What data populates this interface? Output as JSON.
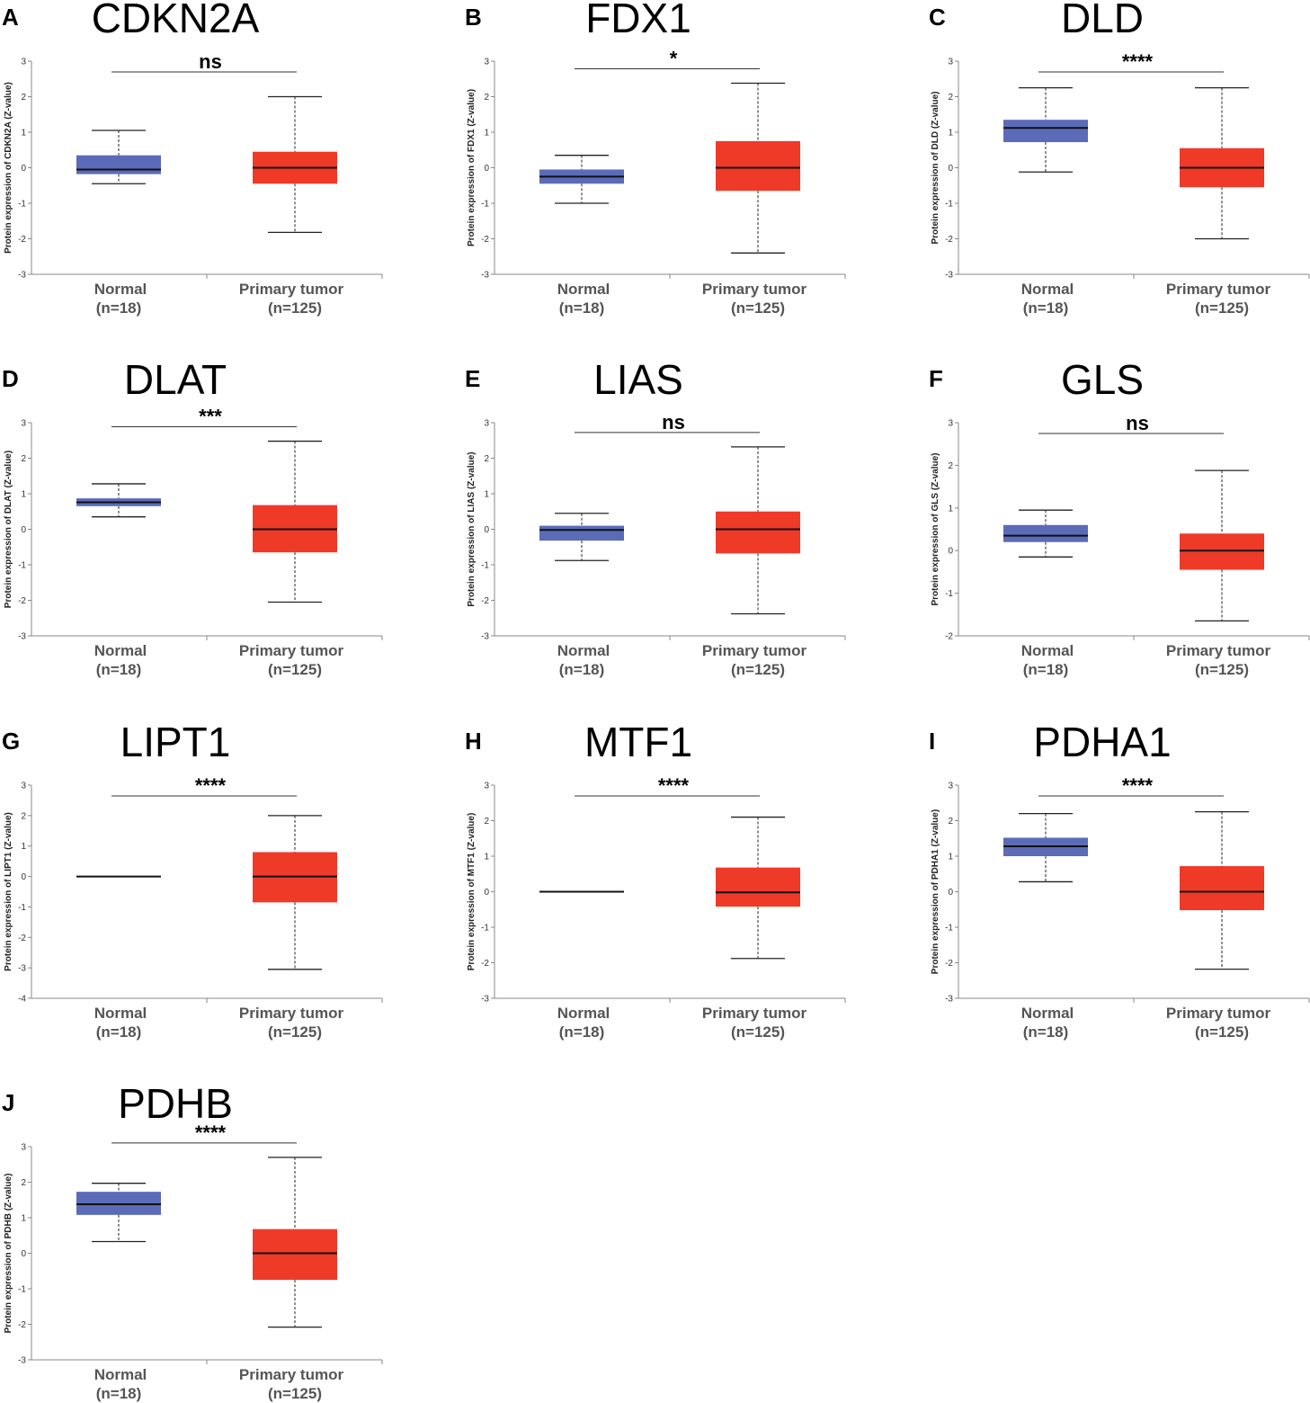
{
  "colors": {
    "normal": "#5b6bb8",
    "tumor": "#ef3a28",
    "median": "#111111",
    "axis": "#888888"
  },
  "chart_data": [
    {
      "panel": "A",
      "gene": "CDKN2A",
      "type": "box",
      "title": "CDKN2A",
      "ylabel": "Protein expression of CDKN2A (Z-value)",
      "ylim": [
        -3,
        3
      ],
      "yticks": [
        -3,
        -2,
        -1,
        0,
        1,
        2,
        3
      ],
      "significance": "ns",
      "groups": [
        {
          "name": "Normal",
          "n": "(n=18)",
          "min": -0.45,
          "q1": -0.18,
          "median": -0.05,
          "q3": 0.35,
          "max": 1.05
        },
        {
          "name": "Primary tumor",
          "n": "(n=125)",
          "min": -1.82,
          "q1": -0.45,
          "median": 0.0,
          "q3": 0.45,
          "max": 2.0
        }
      ]
    },
    {
      "panel": "B",
      "gene": "FDX1",
      "type": "box",
      "title": "FDX1",
      "ylabel": "Protein expression of FDX1 (Z-value)",
      "ylim": [
        -3,
        3
      ],
      "yticks": [
        -3,
        -2,
        -1,
        0,
        1,
        2,
        3
      ],
      "significance": "*",
      "groups": [
        {
          "name": "Normal",
          "n": "(n=18)",
          "min": -1.0,
          "q1": -0.45,
          "median": -0.25,
          "q3": -0.05,
          "max": 0.35
        },
        {
          "name": "Primary tumor",
          "n": "(n=125)",
          "min": -2.4,
          "q1": -0.65,
          "median": 0.0,
          "q3": 0.75,
          "max": 2.38
        }
      ]
    },
    {
      "panel": "C",
      "gene": "DLD",
      "type": "box",
      "title": "DLD",
      "ylabel": "Protein expression of DLD (Z-value)",
      "ylim": [
        -3,
        3
      ],
      "yticks": [
        -3,
        -2,
        -1,
        0,
        1,
        2,
        3
      ],
      "significance": "****",
      "groups": [
        {
          "name": "Normal",
          "n": "(n=18)",
          "min": -0.12,
          "q1": 0.72,
          "median": 1.12,
          "q3": 1.35,
          "max": 2.25
        },
        {
          "name": "Primary tumor",
          "n": "(n=125)",
          "min": -2.0,
          "q1": -0.55,
          "median": 0.0,
          "q3": 0.55,
          "max": 2.25
        }
      ]
    },
    {
      "panel": "D",
      "gene": "DLAT",
      "type": "box",
      "title": "DLAT",
      "ylabel": "Protein expression of DLAT (Z-value)",
      "ylim": [
        -3,
        3
      ],
      "yticks": [
        -3,
        -2,
        -1,
        0,
        1,
        2,
        3
      ],
      "significance": "***",
      "groups": [
        {
          "name": "Normal",
          "n": "(n=18)",
          "min": 0.35,
          "q1": 0.65,
          "median": 0.76,
          "q3": 0.87,
          "max": 1.28
        },
        {
          "name": "Primary tumor",
          "n": "(n=125)",
          "min": -2.05,
          "q1": -0.65,
          "median": 0.0,
          "q3": 0.68,
          "max": 2.48
        }
      ]
    },
    {
      "panel": "E",
      "gene": "LIAS",
      "type": "box",
      "title": "LIAS",
      "ylabel": "Protein expression of LIAS (Z-value)",
      "ylim": [
        -3,
        3
      ],
      "yticks": [
        -3,
        -2,
        -1,
        0,
        1,
        2,
        3
      ],
      "significance": "ns",
      "groups": [
        {
          "name": "Normal",
          "n": "(n=18)",
          "min": -0.88,
          "q1": -0.32,
          "median": -0.02,
          "q3": 0.1,
          "max": 0.45
        },
        {
          "name": "Primary tumor",
          "n": "(n=125)",
          "min": -2.38,
          "q1": -0.68,
          "median": 0.0,
          "q3": 0.5,
          "max": 2.32
        }
      ]
    },
    {
      "panel": "F",
      "gene": "GLS",
      "type": "box",
      "title": "GLS",
      "ylabel": "Protein expression of GLS (Z-value)",
      "ylim": [
        -2,
        3
      ],
      "yticks": [
        -2,
        -1,
        0,
        1,
        2,
        3
      ],
      "significance": "ns",
      "groups": [
        {
          "name": "Normal",
          "n": "(n=18)",
          "min": -0.15,
          "q1": 0.2,
          "median": 0.35,
          "q3": 0.6,
          "max": 0.95
        },
        {
          "name": "Primary tumor",
          "n": "(n=125)",
          "min": -1.65,
          "q1": -0.45,
          "median": 0.0,
          "q3": 0.4,
          "max": 1.88
        }
      ]
    },
    {
      "panel": "G",
      "gene": "LIPT1",
      "type": "box",
      "title": "LIPT1",
      "ylabel": "Protein expression of LIPT1 (Z-value)",
      "ylim": [
        -4,
        3
      ],
      "yticks": [
        -4,
        -3,
        -2,
        -1,
        0,
        1,
        2,
        3
      ],
      "significance": "****",
      "groups": [
        {
          "name": "Normal",
          "n": "(n=18)",
          "min": 0.0,
          "q1": 0.0,
          "median": 0.0,
          "q3": 0.0,
          "max": 0.0
        },
        {
          "name": "Primary tumor",
          "n": "(n=125)",
          "min": -3.05,
          "q1": -0.85,
          "median": 0.0,
          "q3": 0.8,
          "max": 2.0
        }
      ]
    },
    {
      "panel": "H",
      "gene": "MTF1",
      "type": "box",
      "title": "MTF1",
      "ylabel": "Protein expression of MTF1 (Z-value)",
      "ylim": [
        -3,
        3
      ],
      "yticks": [
        -3,
        -2,
        -1,
        0,
        1,
        2,
        3
      ],
      "significance": "****",
      "groups": [
        {
          "name": "Normal",
          "n": "(n=18)",
          "min": 0.0,
          "q1": 0.0,
          "median": 0.0,
          "q3": 0.0,
          "max": 0.0
        },
        {
          "name": "Primary tumor",
          "n": "(n=125)",
          "min": -1.88,
          "q1": -0.42,
          "median": -0.02,
          "q3": 0.68,
          "max": 2.1
        }
      ]
    },
    {
      "panel": "I",
      "gene": "PDHA1",
      "type": "box",
      "title": "PDHA1",
      "ylabel": "Protein expression of PDHA1 (Z-value)",
      "ylim": [
        -3,
        3
      ],
      "yticks": [
        -3,
        -2,
        -1,
        0,
        1,
        2,
        3
      ],
      "significance": "****",
      "groups": [
        {
          "name": "Normal",
          "n": "(n=18)",
          "min": 0.28,
          "q1": 1.0,
          "median": 1.28,
          "q3": 1.52,
          "max": 2.2
        },
        {
          "name": "Primary tumor",
          "n": "(n=125)",
          "min": -2.18,
          "q1": -0.52,
          "median": 0.0,
          "q3": 0.72,
          "max": 2.25
        }
      ]
    },
    {
      "panel": "J",
      "gene": "PDHB",
      "type": "box",
      "title": "PDHB",
      "ylabel": "Protein expression of PDHB (Z-value)",
      "ylim": [
        -3,
        3
      ],
      "yticks": [
        -3,
        -2,
        -1,
        0,
        1,
        2,
        3
      ],
      "significance": "****",
      "groups": [
        {
          "name": "Normal",
          "n": "(n=18)",
          "min": 0.33,
          "q1": 1.08,
          "median": 1.38,
          "q3": 1.73,
          "max": 1.97
        },
        {
          "name": "Primary tumor",
          "n": "(n=125)",
          "min": -2.08,
          "q1": -0.75,
          "median": 0.0,
          "q3": 0.68,
          "max": 2.7
        }
      ]
    }
  ]
}
